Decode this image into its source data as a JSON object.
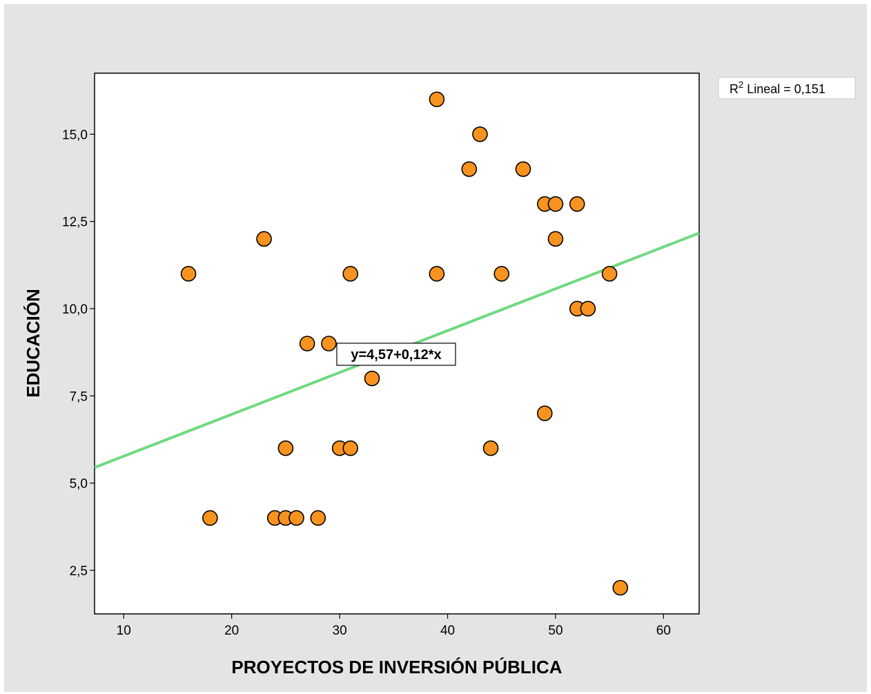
{
  "chart_data": {
    "type": "scatter",
    "xlabel": "PROYECTOS DE INVERSIÓN PÚBLICA",
    "ylabel": "EDUCACIÓN",
    "xlim": [
      7.3,
      63.3
    ],
    "ylim": [
      1.25,
      16.75
    ],
    "xticks": [
      10,
      20,
      30,
      40,
      50,
      60
    ],
    "xtick_labels": [
      "10",
      "20",
      "30",
      "40",
      "50",
      "60"
    ],
    "yticks": [
      2.5,
      5.0,
      7.5,
      10.0,
      12.5,
      15.0
    ],
    "ytick_labels": [
      "2,5",
      "5,0",
      "7,5",
      "10,0",
      "12,5",
      "15,0"
    ],
    "grid": false,
    "legend": {
      "placement": "top-right-outside",
      "r2_prefix": "R",
      "r2_exponent": "2",
      "r2_text": " Lineal = 0,151"
    },
    "fit_line": {
      "intercept": 4.57,
      "slope": 0.12,
      "equation_label": "y=4,57+0,12*x",
      "color": "#6fd97f"
    },
    "point_color": "#f7931e",
    "points": [
      {
        "x": 16,
        "y": 11
      },
      {
        "x": 18,
        "y": 4
      },
      {
        "x": 23,
        "y": 12
      },
      {
        "x": 24,
        "y": 4
      },
      {
        "x": 25,
        "y": 4
      },
      {
        "x": 25,
        "y": 6
      },
      {
        "x": 26,
        "y": 4
      },
      {
        "x": 27,
        "y": 9
      },
      {
        "x": 28,
        "y": 4
      },
      {
        "x": 29,
        "y": 9
      },
      {
        "x": 30,
        "y": 6
      },
      {
        "x": 31,
        "y": 6
      },
      {
        "x": 31,
        "y": 11
      },
      {
        "x": 33,
        "y": 8
      },
      {
        "x": 39,
        "y": 16
      },
      {
        "x": 39,
        "y": 11
      },
      {
        "x": 42,
        "y": 14
      },
      {
        "x": 43,
        "y": 15
      },
      {
        "x": 44,
        "y": 6
      },
      {
        "x": 45,
        "y": 11
      },
      {
        "x": 47,
        "y": 14
      },
      {
        "x": 49,
        "y": 13
      },
      {
        "x": 49,
        "y": 7
      },
      {
        "x": 50,
        "y": 13
      },
      {
        "x": 50,
        "y": 12
      },
      {
        "x": 52,
        "y": 13
      },
      {
        "x": 52,
        "y": 10
      },
      {
        "x": 53,
        "y": 10
      },
      {
        "x": 55,
        "y": 11
      },
      {
        "x": 56,
        "y": 2
      }
    ]
  }
}
